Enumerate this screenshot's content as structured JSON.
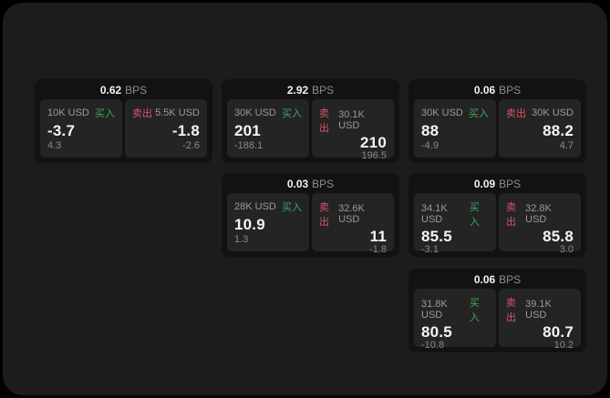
{
  "colors": {
    "outer_bg": "#000000",
    "page_bg": "#1c1c1c",
    "card_bg": "#121212",
    "panel_bg": "#242424",
    "buy_green": "#41a85f",
    "sell_red": "#d95568",
    "label_gray": "#9a9a9a",
    "value_white": "#f5f5f5"
  },
  "labels": {
    "bps": "BPS",
    "buy": "买入",
    "sell": "卖出"
  },
  "cards": [
    {
      "bps": "0.62",
      "buy": {
        "amount": "10K USD",
        "value": "-3.7",
        "sub": "4.3"
      },
      "sell": {
        "amount": "5.5K USD",
        "value": "-1.8",
        "sub": "-2.6"
      }
    },
    {
      "bps": "2.92",
      "buy": {
        "amount": "30K USD",
        "value": "201",
        "sub": "-188.1"
      },
      "sell": {
        "amount": "30.1K USD",
        "value": "210",
        "sub": "196.5"
      }
    },
    {
      "bps": "0.06",
      "buy": {
        "amount": "30K USD",
        "value": "88",
        "sub": "-4.9"
      },
      "sell": {
        "amount": "30K USD",
        "value": "88.2",
        "sub": "4.7"
      }
    },
    {
      "bps": "0.03",
      "buy": {
        "amount": "28K USD",
        "value": "10.9",
        "sub": "1.3"
      },
      "sell": {
        "amount": "32.6K USD",
        "value": "11",
        "sub": "-1.8"
      }
    },
    {
      "bps": "0.09",
      "buy": {
        "amount": "34.1K USD",
        "value": "85.5",
        "sub": "-3.1"
      },
      "sell": {
        "amount": "32.8K USD",
        "value": "85.8",
        "sub": "3.0"
      }
    },
    {
      "bps": "0.06",
      "buy": {
        "amount": "31.8K USD",
        "value": "80.5",
        "sub": "-10.8"
      },
      "sell": {
        "amount": "39.1K USD",
        "value": "80.7",
        "sub": "10.2"
      }
    }
  ]
}
